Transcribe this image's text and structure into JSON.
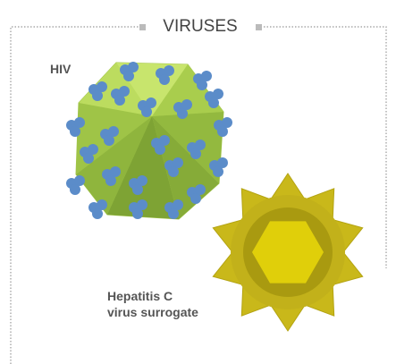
{
  "header": {
    "title": "VIRUSES"
  },
  "viruses": [
    {
      "label": [
        "HIV"
      ]
    },
    {
      "label": [
        "Hepatitis C",
        "virus surrogate"
      ]
    }
  ]
}
